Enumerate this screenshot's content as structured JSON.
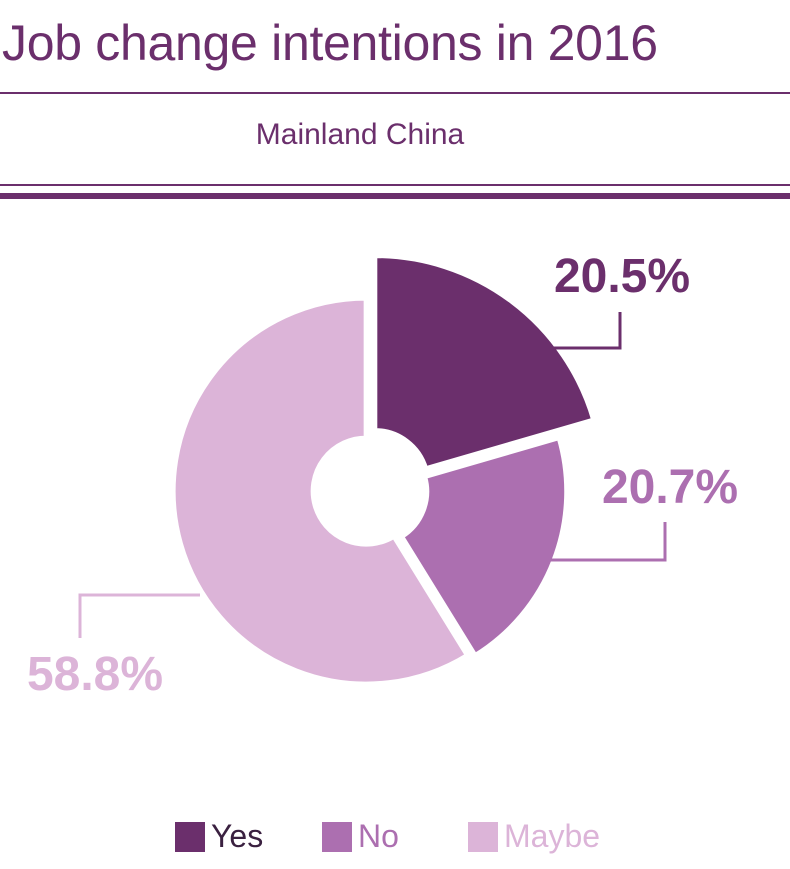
{
  "chart_data": {
    "type": "pie",
    "title": "Job change intentions in 2016",
    "subtitle": "Mainland China",
    "labels": [
      "Yes",
      "No",
      "Maybe"
    ],
    "values": [
      20.5,
      20.7,
      58.8
    ],
    "value_labels": [
      "20.5%",
      "20.7%",
      "58.8%"
    ],
    "colors": [
      "#6b2f6c",
      "#ac6fb0",
      "#dcb4d8"
    ],
    "donut": true,
    "legend_placement": "bottom"
  }
}
